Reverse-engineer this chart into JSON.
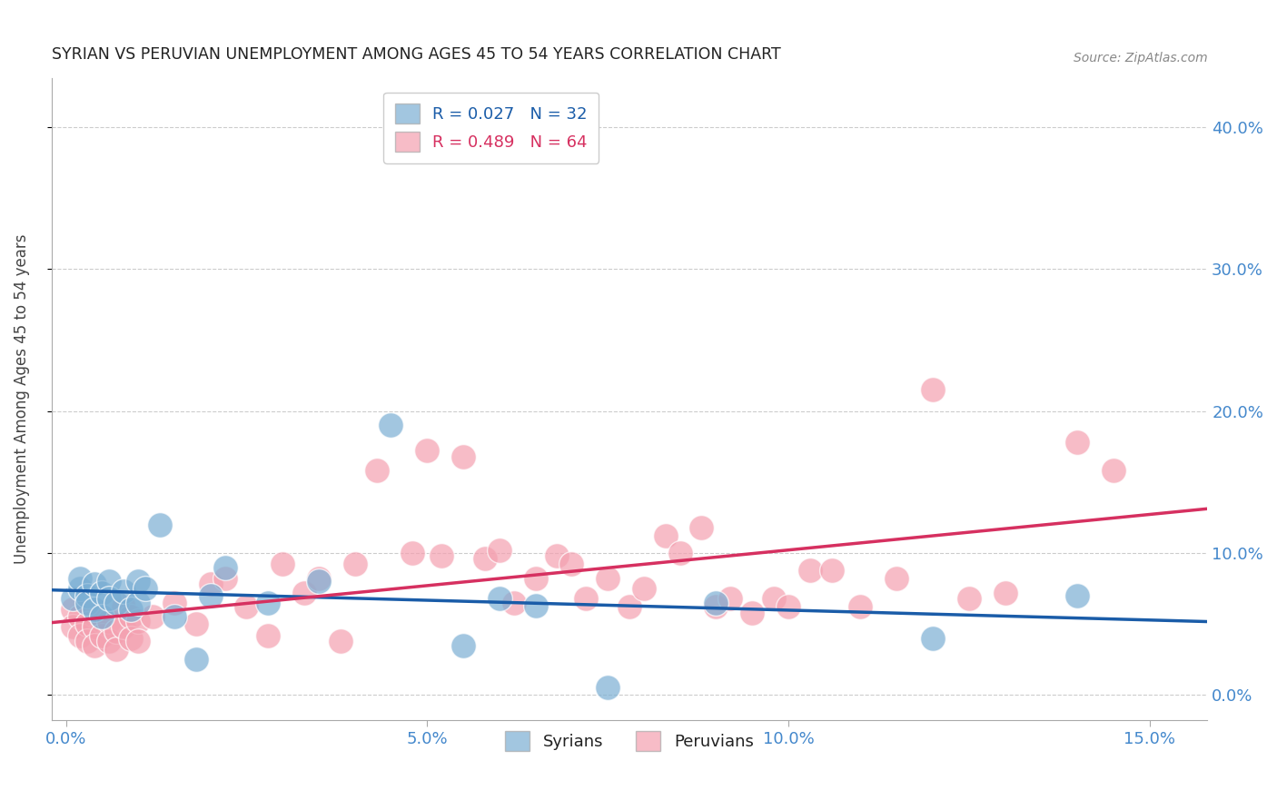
{
  "title": "SYRIAN VS PERUVIAN UNEMPLOYMENT AMONG AGES 45 TO 54 YEARS CORRELATION CHART",
  "source": "Source: ZipAtlas.com",
  "ylabel": "Unemployment Among Ages 45 to 54 years",
  "xlabel_ticks": [
    "0.0%",
    "5.0%",
    "10.0%",
    "15.0%"
  ],
  "xlabel_vals": [
    0.0,
    0.05,
    0.1,
    0.15
  ],
  "ylabel_ticks": [
    "0.0%",
    "10.0%",
    "20.0%",
    "30.0%",
    "40.0%"
  ],
  "ylabel_vals": [
    0.0,
    0.1,
    0.2,
    0.3,
    0.4
  ],
  "xlim": [
    -0.002,
    0.158
  ],
  "ylim": [
    -0.018,
    0.435
  ],
  "syrian_R": 0.027,
  "syrian_N": 32,
  "peruvian_R": 0.489,
  "peruvian_N": 64,
  "syrian_color": "#7BAFD4",
  "peruvian_color": "#F4A0B0",
  "syrian_line_color": "#1A5CA8",
  "peruvian_line_color": "#D63060",
  "background_color": "#FFFFFF",
  "grid_color": "#CCCCCC",
  "title_color": "#222222",
  "axis_tick_color": "#4488CC",
  "syrian_x": [
    0.001,
    0.002,
    0.002,
    0.003,
    0.003,
    0.004,
    0.004,
    0.005,
    0.005,
    0.006,
    0.006,
    0.007,
    0.008,
    0.009,
    0.01,
    0.01,
    0.011,
    0.013,
    0.015,
    0.018,
    0.02,
    0.022,
    0.028,
    0.035,
    0.045,
    0.055,
    0.06,
    0.065,
    0.075,
    0.09,
    0.12,
    0.14
  ],
  "syrian_y": [
    0.068,
    0.075,
    0.082,
    0.07,
    0.065,
    0.078,
    0.06,
    0.072,
    0.055,
    0.08,
    0.068,
    0.065,
    0.073,
    0.06,
    0.08,
    0.065,
    0.075,
    0.12,
    0.055,
    0.025,
    0.07,
    0.09,
    0.065,
    0.08,
    0.19,
    0.035,
    0.068,
    0.063,
    0.005,
    0.065,
    0.04,
    0.07
  ],
  "peruvian_x": [
    0.001,
    0.001,
    0.002,
    0.002,
    0.003,
    0.003,
    0.004,
    0.004,
    0.005,
    0.005,
    0.006,
    0.006,
    0.007,
    0.007,
    0.008,
    0.008,
    0.009,
    0.009,
    0.01,
    0.01,
    0.012,
    0.015,
    0.018,
    0.02,
    0.022,
    0.025,
    0.028,
    0.03,
    0.033,
    0.035,
    0.038,
    0.04,
    0.043,
    0.048,
    0.05,
    0.052,
    0.055,
    0.058,
    0.06,
    0.062,
    0.065,
    0.068,
    0.07,
    0.072,
    0.075,
    0.078,
    0.08,
    0.083,
    0.085,
    0.088,
    0.09,
    0.092,
    0.095,
    0.098,
    0.1,
    0.103,
    0.106,
    0.11,
    0.115,
    0.12,
    0.125,
    0.13,
    0.14,
    0.145
  ],
  "peruvian_y": [
    0.06,
    0.048,
    0.055,
    0.042,
    0.05,
    0.038,
    0.048,
    0.035,
    0.055,
    0.042,
    0.052,
    0.038,
    0.045,
    0.032,
    0.062,
    0.048,
    0.055,
    0.04,
    0.052,
    0.038,
    0.055,
    0.065,
    0.05,
    0.078,
    0.082,
    0.062,
    0.042,
    0.092,
    0.072,
    0.082,
    0.038,
    0.092,
    0.158,
    0.1,
    0.172,
    0.098,
    0.168,
    0.096,
    0.102,
    0.065,
    0.082,
    0.098,
    0.092,
    0.068,
    0.082,
    0.062,
    0.075,
    0.112,
    0.1,
    0.118,
    0.062,
    0.068,
    0.058,
    0.068,
    0.062,
    0.088,
    0.088,
    0.062,
    0.082,
    0.215,
    0.068,
    0.072,
    0.178,
    0.158
  ]
}
